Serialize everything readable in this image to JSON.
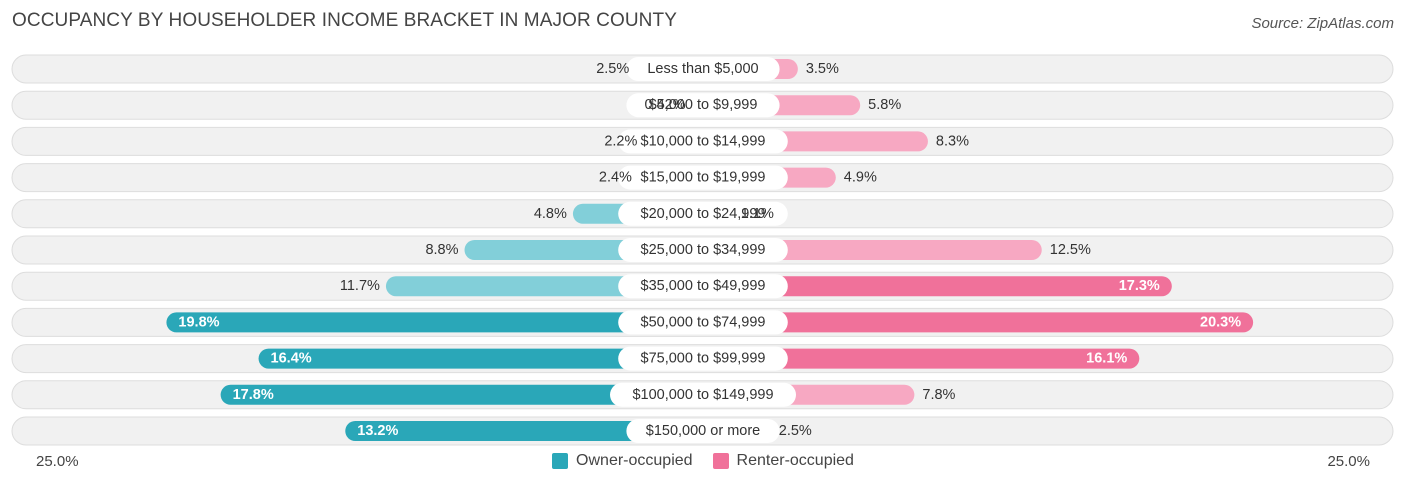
{
  "title": "OCCUPANCY BY HOUSEHOLDER INCOME BRACKET IN MAJOR COUNTY",
  "source": "Source: ZipAtlas.com",
  "axis": {
    "left_label": "25.0%",
    "right_label": "25.0%"
  },
  "legend": {
    "owner": "Owner-occupied",
    "renter": "Renter-occupied"
  },
  "colors": {
    "owner_dark": "#2aa7b8",
    "owner_light": "#82cfd9",
    "renter_dark": "#f0719a",
    "renter_light": "#f7a8c2",
    "row_bg": "#f1f1f1",
    "row_border": "#dddddd"
  },
  "chart_data": {
    "type": "bar",
    "orientation": "horizontal-diverging",
    "title": "OCCUPANCY BY HOUSEHOLDER INCOME BRACKET IN MAJOR COUNTY",
    "xlim": [
      -25,
      25
    ],
    "categories": [
      "Less than $5,000",
      "$5,000 to $9,999",
      "$10,000 to $14,999",
      "$15,000 to $19,999",
      "$20,000 to $24,999",
      "$25,000 to $34,999",
      "$35,000 to $49,999",
      "$50,000 to $74,999",
      "$75,000 to $99,999",
      "$100,000 to $149,999",
      "$150,000 or more"
    ],
    "series": [
      {
        "name": "Owner-occupied",
        "values": [
          2.5,
          0.42,
          2.2,
          2.4,
          4.8,
          8.8,
          11.7,
          19.8,
          16.4,
          17.8,
          13.2
        ],
        "labels": [
          "2.5%",
          "0.42%",
          "2.2%",
          "2.4%",
          "4.8%",
          "8.8%",
          "11.7%",
          "19.8%",
          "16.4%",
          "17.8%",
          "13.2%"
        ]
      },
      {
        "name": "Renter-occupied",
        "values": [
          3.5,
          5.8,
          8.3,
          4.9,
          1.1,
          12.5,
          17.3,
          20.3,
          16.1,
          7.8,
          2.5
        ],
        "labels": [
          "3.5%",
          "5.8%",
          "8.3%",
          "4.9%",
          "1.1%",
          "12.5%",
          "17.3%",
          "20.3%",
          "16.1%",
          "7.8%",
          "2.5%"
        ]
      }
    ]
  }
}
